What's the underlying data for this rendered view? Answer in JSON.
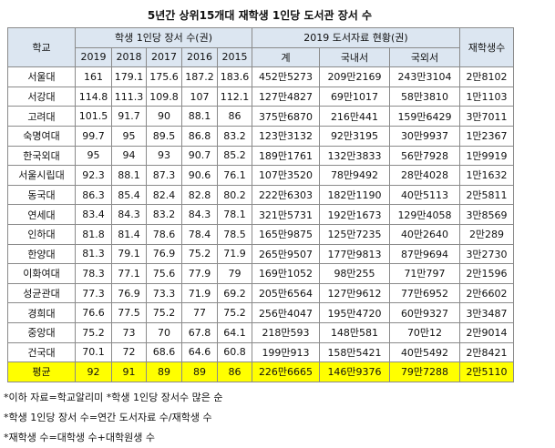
{
  "title": "5년간 상위15개대 재학생 1인당 도서관 장서 수",
  "table": {
    "headers": {
      "school": "학교",
      "per_student": "학생 1인당 장서 수(권)",
      "holdings": "2019 도서자료 현황(권)",
      "students": "재학생수"
    },
    "sub_headers": [
      "2019",
      "2018",
      "2017",
      "2016",
      "2015",
      "계",
      "국내서",
      "국외서"
    ],
    "rows": [
      [
        "서울대",
        "161",
        "179.1",
        "175.6",
        "187.2",
        "183.6",
        "452만5273",
        "209만2169",
        "243만3104",
        "2만8102"
      ],
      [
        "서강대",
        "114.8",
        "111.3",
        "109.8",
        "107",
        "112.1",
        "127만4827",
        "69만1017",
        "58만3810",
        "1만1103"
      ],
      [
        "고려대",
        "101.5",
        "91.7",
        "90",
        "88.1",
        "86",
        "375만6870",
        "216만441",
        "159만6429",
        "3만7011"
      ],
      [
        "숙명여대",
        "99.7",
        "95",
        "89.5",
        "86.8",
        "83.2",
        "123만3132",
        "92만3195",
        "30만9937",
        "1만2367"
      ],
      [
        "한국외대",
        "95",
        "94",
        "93",
        "90.7",
        "85.2",
        "189만1761",
        "132만3833",
        "56만7928",
        "1만9919"
      ],
      [
        "서울시립대",
        "92.3",
        "88.1",
        "87.3",
        "90.6",
        "76.1",
        "107만3520",
        "78만9492",
        "28만4028",
        "1만1632"
      ],
      [
        "동국대",
        "86.3",
        "85.4",
        "82.4",
        "82.8",
        "80.2",
        "222만6303",
        "182만1190",
        "40만5113",
        "2만5811"
      ],
      [
        "연세대",
        "83.4",
        "84.3",
        "83.2",
        "84.3",
        "78.1",
        "321만5731",
        "192만1673",
        "129만4058",
        "3만8569"
      ],
      [
        "인하대",
        "81.8",
        "81.4",
        "78.6",
        "78.4",
        "78.5",
        "165만9875",
        "125만7235",
        "40만2640",
        "2만289"
      ],
      [
        "한양대",
        "81.3",
        "79.1",
        "76.9",
        "75.2",
        "71.9",
        "265만9507",
        "177만9813",
        "87만9694",
        "3만2730"
      ],
      [
        "이화여대",
        "78.3",
        "77.1",
        "75.6",
        "77.9",
        "79",
        "169만1052",
        "98만255",
        "71만797",
        "2만1596"
      ],
      [
        "성균관대",
        "77.3",
        "76.9",
        "73.3",
        "71.9",
        "69.2",
        "205만6564",
        "127만9612",
        "77만6952",
        "2만6602"
      ],
      [
        "경희대",
        "76.6",
        "77.5",
        "75.2",
        "77",
        "75.2",
        "256만4047",
        "195만4720",
        "60만9327",
        "3만3487"
      ],
      [
        "중앙대",
        "75.2",
        "73",
        "70",
        "67.8",
        "64.1",
        "218만593",
        "148만581",
        "70만12",
        "2만9014"
      ],
      [
        "건국대",
        "70.1",
        "72",
        "68.6",
        "64.6",
        "60.8",
        "199만913",
        "158만5421",
        "40만5492",
        "2만8421"
      ]
    ],
    "average": [
      "평균",
      "92",
      "91",
      "89",
      "89",
      "86",
      "226만6665",
      "146만9376",
      "79만7288",
      "2만5110"
    ]
  },
  "notes": [
    "*이하 자료=학교알리미 *학생 1인당 장서수 많은 순",
    "*학생 1인당 장서 수=연간 도서자료 수/재학생 수",
    "*재학생 수=대학생 수+대학원생 수"
  ]
}
